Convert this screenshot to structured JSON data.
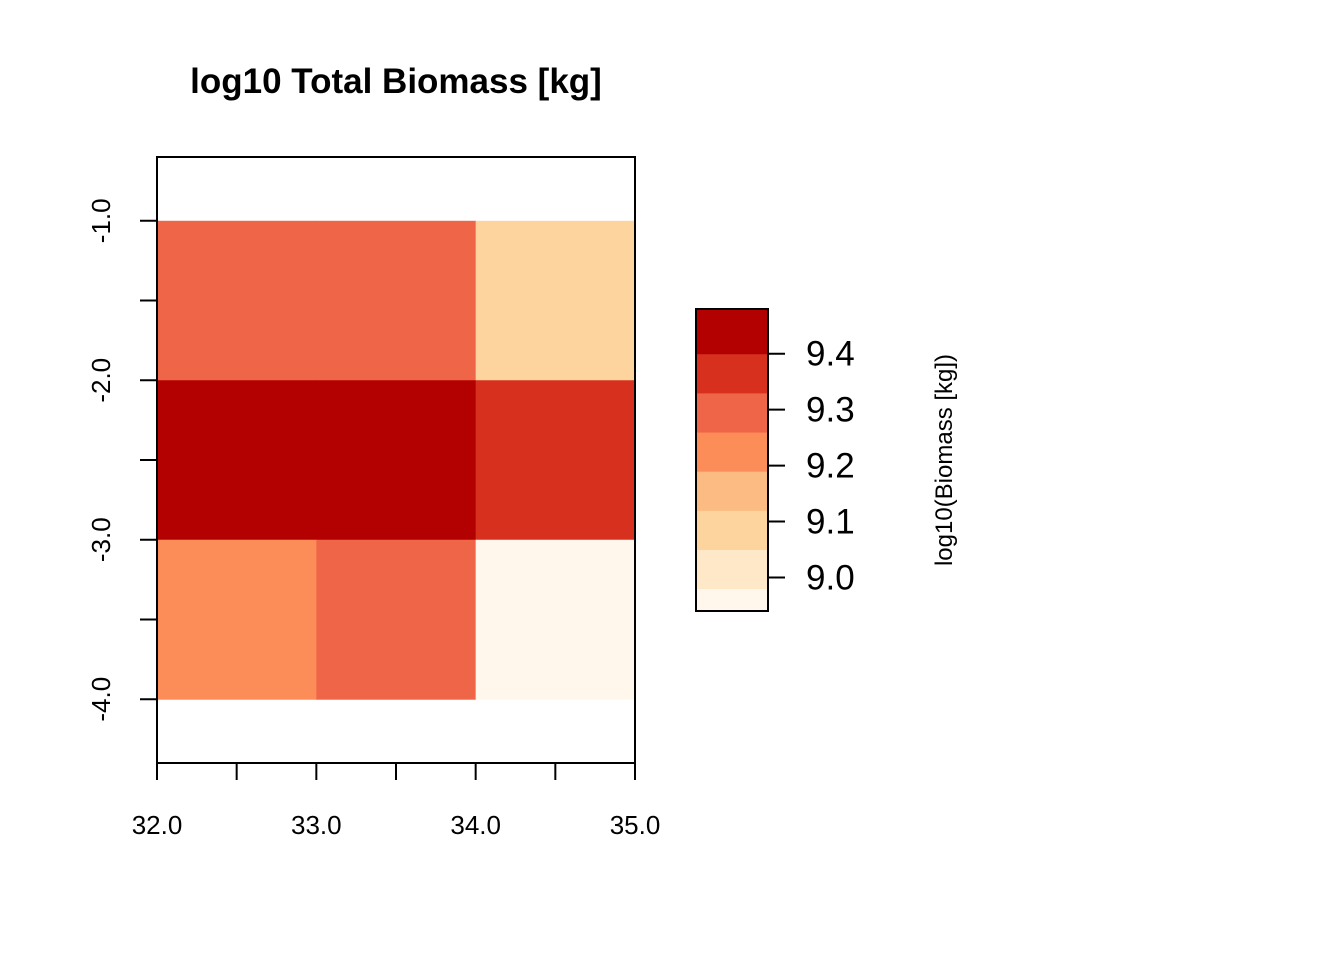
{
  "chart_data": {
    "type": "heatmap",
    "title": "log10 Total Biomass [kg]",
    "xlabel": "",
    "ylabel": "",
    "xlim": [
      32.0,
      35.0
    ],
    "ylim": [
      -4.4,
      -0.6
    ],
    "x_ticks": [
      32.0,
      32.5,
      33.0,
      33.5,
      34.0,
      34.5,
      35.0
    ],
    "x_tick_labels": [
      "32.0",
      "",
      "33.0",
      "",
      "34.0",
      "",
      "35.0"
    ],
    "y_ticks": [
      -1.0,
      -1.5,
      -2.0,
      -2.5,
      -3.0,
      -3.5,
      -4.0
    ],
    "y_tick_labels": [
      "-1.0",
      "",
      "-2.0",
      "",
      "-3.0",
      "",
      "-4.0"
    ],
    "x_edges": [
      32.0,
      33.0,
      34.0,
      35.0
    ],
    "y_edges": [
      -4.0,
      -3.0,
      -2.0,
      -1.0
    ],
    "cells": [
      {
        "x0": 32.0,
        "x1": 33.0,
        "y0": -2.0,
        "y1": -1.0,
        "value": 9.27
      },
      {
        "x0": 33.0,
        "x1": 34.0,
        "y0": -2.0,
        "y1": -1.0,
        "value": 9.27
      },
      {
        "x0": 34.0,
        "x1": 35.0,
        "y0": -2.0,
        "y1": -1.0,
        "value": 9.07
      },
      {
        "x0": 32.0,
        "x1": 33.0,
        "y0": -3.0,
        "y1": -2.0,
        "value": 9.45
      },
      {
        "x0": 33.0,
        "x1": 34.0,
        "y0": -3.0,
        "y1": -2.0,
        "value": 9.45
      },
      {
        "x0": 34.0,
        "x1": 35.0,
        "y0": -3.0,
        "y1": -2.0,
        "value": 9.39
      },
      {
        "x0": 32.0,
        "x1": 33.0,
        "y0": -4.0,
        "y1": -3.0,
        "value": 9.22
      },
      {
        "x0": 33.0,
        "x1": 34.0,
        "y0": -4.0,
        "y1": -3.0,
        "value": 9.27
      },
      {
        "x0": 34.0,
        "x1": 35.0,
        "y0": -4.0,
        "y1": -3.0,
        "value": 8.95
      }
    ],
    "colorbar": {
      "label": "log10(Biomass [kg])",
      "range": [
        8.94,
        9.48
      ],
      "breaks": [
        8.94,
        8.98,
        9.05,
        9.12,
        9.19,
        9.26,
        9.33,
        9.4,
        9.48
      ],
      "colors": [
        "#FFF7EC",
        "#FEE8C8",
        "#FDD49E",
        "#FDBB84",
        "#FC8D59",
        "#EF6548",
        "#D7301F",
        "#B30000",
        "#7F0000"
      ],
      "ticks": [
        9.0,
        9.1,
        9.2,
        9.3,
        9.4
      ],
      "tick_labels": [
        "9.0",
        "9.1",
        "9.2",
        "9.3",
        "9.4"
      ]
    },
    "grid": false,
    "legend": "right"
  }
}
